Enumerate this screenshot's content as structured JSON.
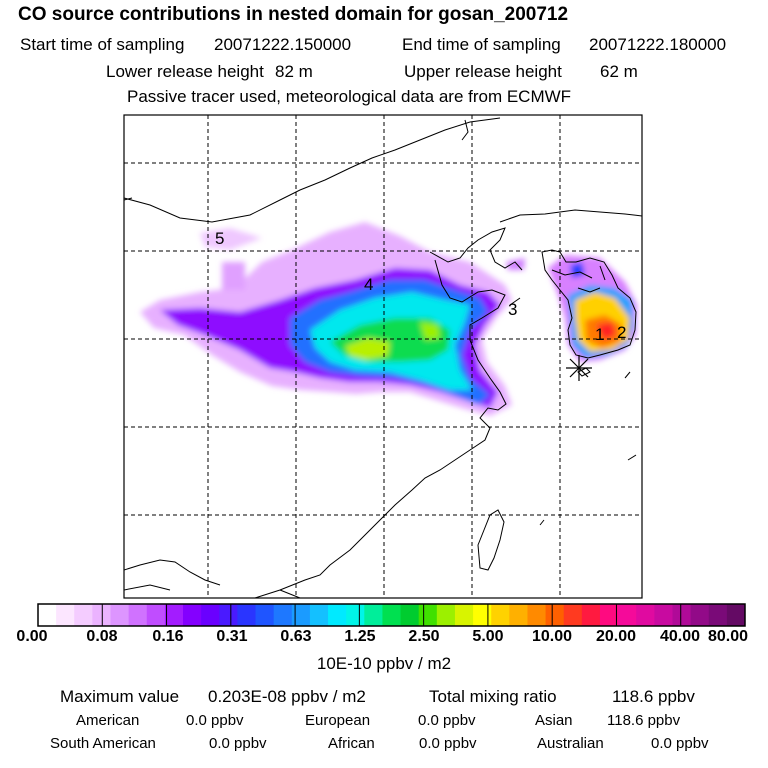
{
  "title": "CO  source contributions in nested domain for gosan_200712",
  "header": {
    "start_label": "Start time of sampling",
    "start_value": "20071222.150000",
    "end_label": "End time of sampling",
    "end_value": "20071222.180000",
    "lower_label": "Lower release height",
    "lower_value": "82 m",
    "upper_label": "Upper release height",
    "upper_value": "62 m",
    "note": "Passive tracer used, meteorological data are from ECMWF"
  },
  "map": {
    "labels": [
      "1",
      "2",
      "3",
      "4",
      "5"
    ],
    "receptor_icon": "asterisk-receptor-icon",
    "colors": {
      "land_line": "#000000",
      "grid_line": "#000000",
      "frame": "#000000"
    }
  },
  "colorbar": {
    "colors": [
      "#ffffff",
      "#fce6ff",
      "#f4ccff",
      "#ebb3ff",
      "#dd95ff",
      "#d072ff",
      "#c04dff",
      "#a31cff",
      "#8400ff",
      "#6a00ff",
      "#4a1aff",
      "#2a35ff",
      "#1f55ff",
      "#1e78ff",
      "#1b9bff",
      "#14c0ff",
      "#00eaff",
      "#00f5e8",
      "#00ee9a",
      "#00e050",
      "#00cc2f",
      "#40e000",
      "#9cf000",
      "#d8f400",
      "#ffff00",
      "#ffd200",
      "#ffb000",
      "#ff8a00",
      "#ff6000",
      "#ff3a20",
      "#ff1a40",
      "#ff0a80",
      "#f50a9a",
      "#e00aa0",
      "#c80aa0",
      "#b00a98",
      "#920a88",
      "#7a0a78",
      "#640a64"
    ],
    "tick_labels": [
      "0.00",
      "0.08",
      "0.16",
      "0.31",
      "0.63",
      "1.25",
      "2.50",
      "5.00",
      "10.00",
      "20.00",
      "40.00",
      "80.00"
    ],
    "units": "10E-10 ppbv / m2"
  },
  "stats": {
    "max_label": "Maximum value",
    "max_value": "0.203E-08 ppbv / m2",
    "total_label": "Total mixing ratio",
    "total_value": "118.6 ppbv",
    "regions": [
      {
        "name": "American",
        "value": "0.0 ppbv"
      },
      {
        "name": "European",
        "value": "0.0 ppbv"
      },
      {
        "name": "Asian",
        "value": "118.6 ppbv"
      },
      {
        "name": "South American",
        "value": "0.0 ppbv"
      },
      {
        "name": "African",
        "value": "0.0 ppbv"
      },
      {
        "name": "Australian",
        "value": "0.0 ppbv"
      }
    ]
  }
}
